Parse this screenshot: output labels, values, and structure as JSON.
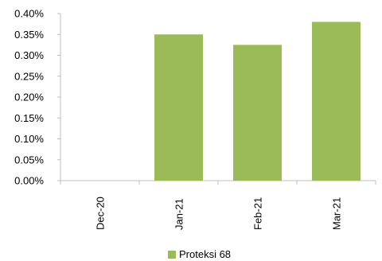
{
  "chart_data": {
    "type": "bar",
    "categories": [
      "Dec-20",
      "Jan-21",
      "Feb-21",
      "Mar-21"
    ],
    "series": [
      {
        "name": "Proteksi 68",
        "values": [
          0.0,
          0.35,
          0.325,
          0.38
        ],
        "color": "#9BBB59"
      }
    ],
    "y_unit": "%",
    "ylim": [
      0.0,
      0.4
    ],
    "y_ticks": [
      0.0,
      0.05,
      0.1,
      0.15,
      0.2,
      0.25,
      0.3,
      0.35,
      0.4
    ],
    "y_tick_labels": [
      "0.00%",
      "0.05%",
      "0.10%",
      "0.15%",
      "0.20%",
      "0.25%",
      "0.30%",
      "0.35%",
      "0.40%"
    ],
    "grid": false,
    "legend_position": "bottom",
    "title": "",
    "xlabel": "",
    "ylabel": ""
  }
}
